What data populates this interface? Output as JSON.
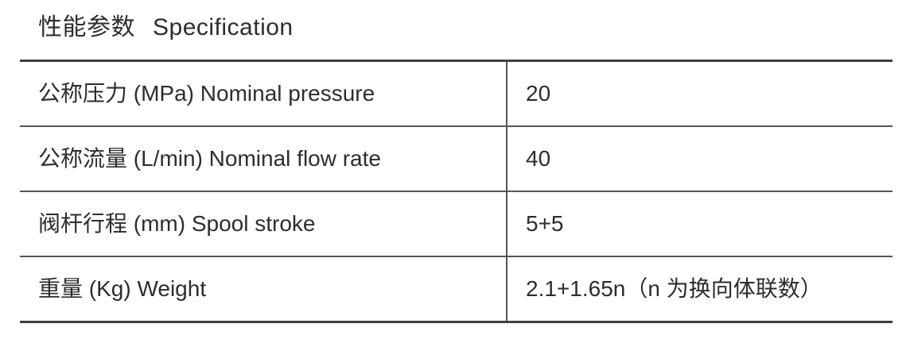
{
  "title": {
    "zh": "性能参数",
    "en": "Specification"
  },
  "table": {
    "rows": [
      {
        "label": "公称压力 (MPa) Nominal pressure",
        "value": "20"
      },
      {
        "label": "公称流量 (L/min) Nominal flow rate",
        "value": "40"
      },
      {
        "label": "阀杆行程 (mm) Spool stroke",
        "value": "5+5"
      },
      {
        "label": "重量 (Kg) Weight",
        "value": "2.1+1.65n（n 为换向体联数）"
      }
    ]
  },
  "colors": {
    "background": "#ffffff",
    "text": "#2d2d2d",
    "rule": "#555555",
    "rule_heavy": "#3f3f3f"
  }
}
